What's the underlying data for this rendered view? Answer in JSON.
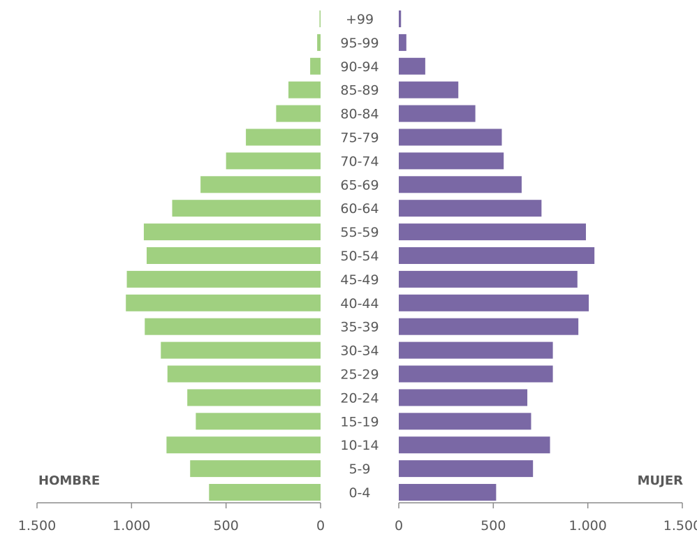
{
  "chart_data": {
    "type": "bar",
    "subtype": "population-pyramid",
    "categories": [
      "0-4",
      "5-9",
      "10-14",
      "15-19",
      "20-24",
      "25-29",
      "30-34",
      "35-39",
      "40-44",
      "45-49",
      "50-54",
      "55-59",
      "60-64",
      "65-69",
      "70-74",
      "75-79",
      "80-84",
      "85-89",
      "90-94",
      "95-99",
      "+99"
    ],
    "series": [
      {
        "name": "HOMBRE",
        "color": "#a0d080",
        "values": [
          590,
          690,
          815,
          660,
          705,
          810,
          845,
          930,
          1030,
          1025,
          920,
          935,
          785,
          635,
          500,
          395,
          235,
          170,
          55,
          18,
          5
        ]
      },
      {
        "name": "MUJER",
        "color": "#7a68a5",
        "values": [
          515,
          710,
          800,
          700,
          680,
          815,
          815,
          950,
          1005,
          945,
          1035,
          990,
          755,
          650,
          555,
          545,
          405,
          315,
          140,
          40,
          12
        ]
      }
    ],
    "xlim": [
      0,
      1500
    ],
    "xticks": [
      "0",
      "500",
      "1.000",
      "1.500"
    ],
    "legend": "bottom-left / bottom-right corners"
  }
}
